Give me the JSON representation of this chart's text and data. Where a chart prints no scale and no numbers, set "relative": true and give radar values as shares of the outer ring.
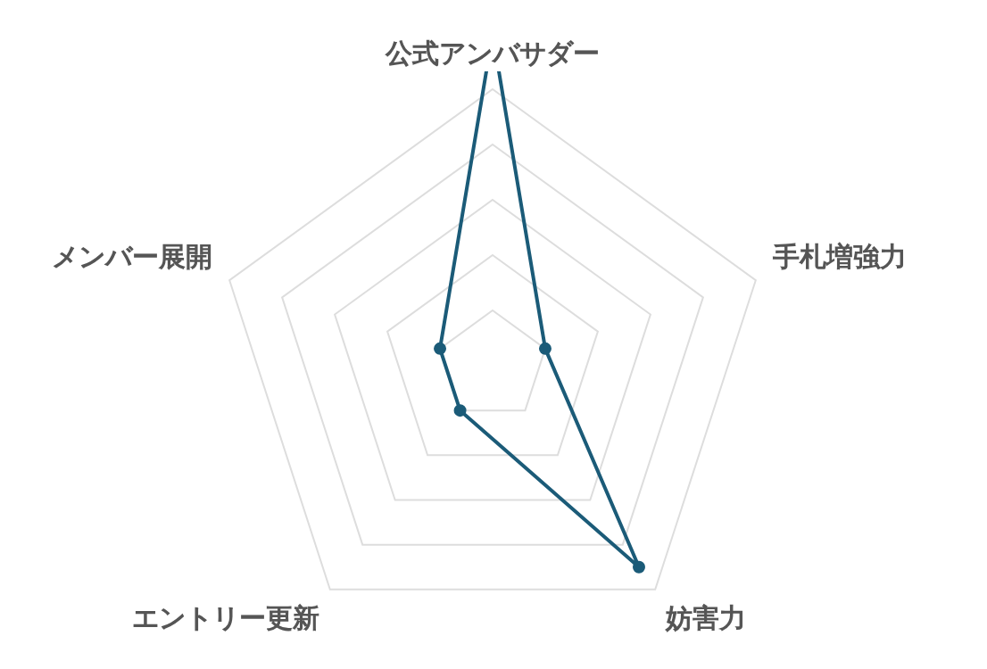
{
  "chart_data": {
    "type": "radar",
    "relative": true,
    "categories": [
      "公式アンバサダー",
      "手札増強力",
      "妨害力",
      "エントリー更新",
      "メンバー展開"
    ],
    "series": [
      {
        "color": "#1b5b78",
        "values": [
          1.2,
          0.2,
          0.9,
          0.2,
          0.2
        ]
      }
    ],
    "grid": true,
    "legend": false,
    "marker": "circle"
  }
}
